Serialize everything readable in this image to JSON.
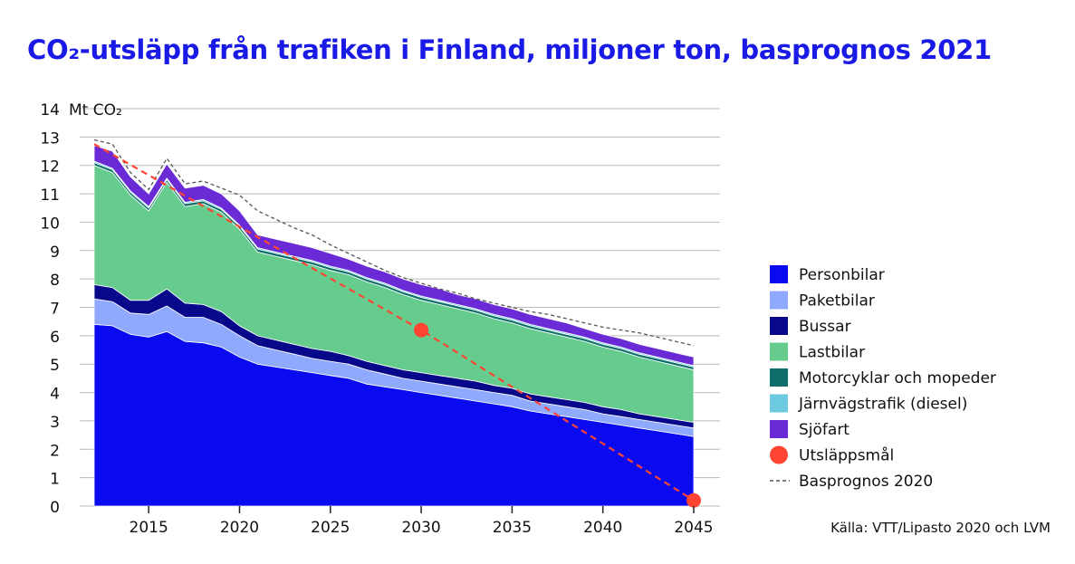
{
  "title": "CO₂-utsläpp från trafiken i Finland, miljoner ton, basprognos 2021",
  "source": "Källa: VTT/Lipasto 2020 och LVM",
  "chart_data": {
    "type": "area",
    "stacked": true,
    "ylabel": "Mt CO₂",
    "ylim": [
      0,
      14
    ],
    "yticks": [
      0,
      1,
      2,
      3,
      4,
      5,
      6,
      7,
      8,
      9,
      10,
      11,
      12,
      13,
      14
    ],
    "xlim": [
      2012,
      2045
    ],
    "xticks": [
      2015,
      2020,
      2025,
      2030,
      2035,
      2040,
      2045
    ],
    "grid": "horizontal",
    "legend_position": "right",
    "x": [
      2012,
      2013,
      2014,
      2015,
      2016,
      2017,
      2018,
      2019,
      2020,
      2021,
      2022,
      2023,
      2024,
      2025,
      2026,
      2027,
      2028,
      2029,
      2030,
      2031,
      2032,
      2033,
      2034,
      2035,
      2036,
      2037,
      2038,
      2039,
      2040,
      2041,
      2042,
      2043,
      2044,
      2045
    ],
    "series": [
      {
        "name": "Personbilar",
        "color": "#0a0af0",
        "values": [
          6.4,
          6.35,
          6.05,
          5.95,
          6.15,
          5.8,
          5.75,
          5.6,
          5.25,
          5.0,
          4.9,
          4.8,
          4.7,
          4.6,
          4.5,
          4.3,
          4.2,
          4.1,
          4.0,
          3.9,
          3.8,
          3.7,
          3.6,
          3.5,
          3.35,
          3.25,
          3.15,
          3.05,
          2.95,
          2.85,
          2.75,
          2.65,
          2.55,
          2.45
        ]
      },
      {
        "name": "Paketbilar",
        "color": "#8fa9ff",
        "values": [
          0.9,
          0.85,
          0.75,
          0.8,
          0.9,
          0.85,
          0.9,
          0.8,
          0.75,
          0.65,
          0.6,
          0.55,
          0.5,
          0.5,
          0.5,
          0.5,
          0.45,
          0.4,
          0.4,
          0.4,
          0.4,
          0.4,
          0.4,
          0.4,
          0.35,
          0.35,
          0.35,
          0.35,
          0.3,
          0.3,
          0.3,
          0.3,
          0.3,
          0.3
        ]
      },
      {
        "name": "Bussar",
        "color": "#08088a",
        "values": [
          0.5,
          0.5,
          0.45,
          0.5,
          0.6,
          0.5,
          0.45,
          0.45,
          0.35,
          0.35,
          0.35,
          0.35,
          0.35,
          0.35,
          0.3,
          0.3,
          0.3,
          0.3,
          0.3,
          0.3,
          0.3,
          0.3,
          0.25,
          0.25,
          0.25,
          0.25,
          0.25,
          0.25,
          0.25,
          0.25,
          0.2,
          0.2,
          0.2,
          0.2
        ]
      },
      {
        "name": "Lastbilar",
        "color": "#66cc8e",
        "values": [
          4.2,
          4.05,
          3.7,
          3.15,
          3.75,
          3.4,
          3.55,
          3.5,
          3.4,
          2.95,
          2.95,
          2.95,
          2.95,
          2.85,
          2.85,
          2.8,
          2.75,
          2.65,
          2.55,
          2.5,
          2.45,
          2.4,
          2.35,
          2.3,
          2.3,
          2.25,
          2.2,
          2.15,
          2.1,
          2.05,
          2.0,
          1.95,
          1.9,
          1.85
        ]
      },
      {
        "name": "Motorcyklar och mopeder",
        "color": "#0d6e6a",
        "values": [
          0.1,
          0.1,
          0.1,
          0.1,
          0.1,
          0.1,
          0.1,
          0.1,
          0.1,
          0.1,
          0.1,
          0.1,
          0.1,
          0.1,
          0.1,
          0.1,
          0.1,
          0.1,
          0.1,
          0.1,
          0.1,
          0.1,
          0.1,
          0.1,
          0.1,
          0.1,
          0.1,
          0.1,
          0.1,
          0.1,
          0.1,
          0.1,
          0.1,
          0.1
        ]
      },
      {
        "name": "Järnvägstrafik (diesel)",
        "color": "#6ccbe0",
        "values": [
          0.05,
          0.05,
          0.05,
          0.05,
          0.05,
          0.05,
          0.05,
          0.05,
          0.05,
          0.05,
          0.05,
          0.05,
          0.05,
          0.05,
          0.05,
          0.05,
          0.05,
          0.05,
          0.05,
          0.05,
          0.05,
          0.05,
          0.05,
          0.05,
          0.05,
          0.05,
          0.05,
          0.05,
          0.05,
          0.05,
          0.05,
          0.05,
          0.05,
          0.05
        ]
      },
      {
        "name": "Sjöfart",
        "color": "#6a2bd6",
        "values": [
          0.55,
          0.6,
          0.5,
          0.45,
          0.5,
          0.5,
          0.5,
          0.5,
          0.5,
          0.45,
          0.45,
          0.45,
          0.45,
          0.45,
          0.4,
          0.4,
          0.4,
          0.4,
          0.4,
          0.4,
          0.35,
          0.35,
          0.35,
          0.35,
          0.35,
          0.35,
          0.35,
          0.3,
          0.3,
          0.3,
          0.3,
          0.3,
          0.3,
          0.3
        ]
      }
    ],
    "target": {
      "name": "Utsläppsmål",
      "color": "#ff4433",
      "points": [
        {
          "x": 2030,
          "y": 6.2
        },
        {
          "x": 2045,
          "y": 0.2
        }
      ],
      "line": [
        [
          2012,
          12.75
        ],
        [
          2030,
          6.2
        ],
        [
          2045,
          0.2
        ]
      ]
    },
    "reference": {
      "name": "Basprognos 2020",
      "color": "#555555",
      "x": [
        2012,
        2013,
        2014,
        2015,
        2016,
        2017,
        2018,
        2019,
        2020,
        2021,
        2022,
        2023,
        2024,
        2025,
        2026,
        2027,
        2028,
        2029,
        2030,
        2031,
        2032,
        2033,
        2034,
        2035,
        2036,
        2037,
        2038,
        2039,
        2040,
        2041,
        2042,
        2043,
        2044,
        2045
      ],
      "values": [
        12.9,
        12.75,
        11.75,
        11.15,
        12.25,
        11.35,
        11.45,
        11.2,
        10.95,
        10.4,
        10.1,
        9.8,
        9.55,
        9.2,
        8.9,
        8.6,
        8.3,
        8.05,
        7.85,
        7.65,
        7.5,
        7.3,
        7.15,
        7.0,
        6.85,
        6.75,
        6.6,
        6.45,
        6.3,
        6.2,
        6.1,
        5.95,
        5.8,
        5.65
      ]
    }
  }
}
